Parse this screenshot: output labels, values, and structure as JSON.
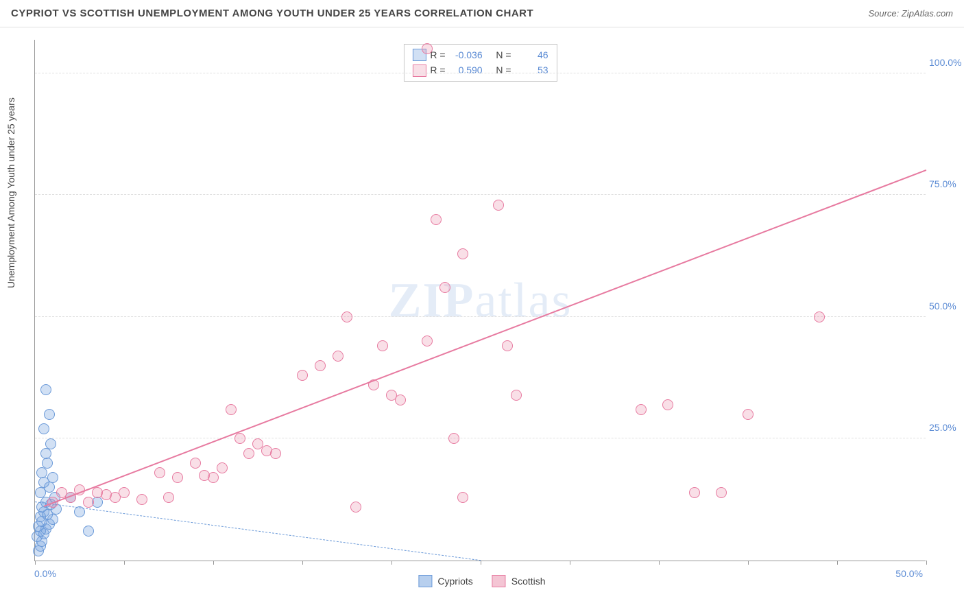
{
  "title": "CYPRIOT VS SCOTTISH UNEMPLOYMENT AMONG YOUTH UNDER 25 YEARS CORRELATION CHART",
  "source_label": "Source: ZipAtlas.com",
  "y_axis_label": "Unemployment Among Youth under 25 years",
  "watermark": {
    "bold": "ZIP",
    "light": "atlas"
  },
  "chart": {
    "type": "scatter",
    "xlim": [
      0,
      50
    ],
    "ylim": [
      0,
      107
    ],
    "y_ticks": [
      25,
      50,
      75,
      100
    ],
    "y_tick_labels": [
      "25.0%",
      "50.0%",
      "75.0%",
      "100.0%"
    ],
    "x_tick_positions": [
      0,
      5,
      10,
      15,
      20,
      25,
      30,
      35,
      40,
      45,
      50
    ],
    "x_origin_label": "0.0%",
    "x_max_label": "50.0%",
    "grid_color": "#e0e0e0",
    "background_color": "#ffffff",
    "axis_color": "#999999",
    "marker_radius": 8,
    "marker_border_width": 1.5,
    "series": [
      {
        "name": "Cypriots",
        "fill_color": "rgba(123,167,224,0.35)",
        "stroke_color": "#6a99d8",
        "r_value": "-0.036",
        "n_value": "46",
        "trend": {
          "x1": 0,
          "y1": 12,
          "x2": 25,
          "y2": 0,
          "style": "dash"
        },
        "points": [
          [
            0.2,
            2
          ],
          [
            0.3,
            3
          ],
          [
            0.4,
            4
          ],
          [
            0.1,
            5
          ],
          [
            0.5,
            5.5
          ],
          [
            0.3,
            6
          ],
          [
            0.6,
            6.5
          ],
          [
            0.2,
            7
          ],
          [
            0.8,
            7.5
          ],
          [
            0.4,
            8
          ],
          [
            1.0,
            8.5
          ],
          [
            0.3,
            9
          ],
          [
            0.7,
            9.5
          ],
          [
            0.5,
            10
          ],
          [
            1.2,
            10.5
          ],
          [
            0.4,
            11
          ],
          [
            0.9,
            11.5
          ],
          [
            0.6,
            12
          ],
          [
            1.1,
            13
          ],
          [
            0.3,
            14
          ],
          [
            0.8,
            15
          ],
          [
            0.5,
            16
          ],
          [
            1.0,
            17
          ],
          [
            0.4,
            18
          ],
          [
            0.7,
            20
          ],
          [
            0.6,
            22
          ],
          [
            0.9,
            24
          ],
          [
            0.5,
            27
          ],
          [
            0.8,
            30
          ],
          [
            0.6,
            35
          ],
          [
            2.0,
            13
          ],
          [
            2.5,
            10
          ],
          [
            3.0,
            6
          ],
          [
            3.5,
            12
          ]
        ]
      },
      {
        "name": "Scottish",
        "fill_color": "rgba(233,140,170,0.28)",
        "stroke_color": "#e77aa0",
        "r_value": "0.590",
        "n_value": "53",
        "trend": {
          "x1": 0.5,
          "y1": 11,
          "x2": 50,
          "y2": 80,
          "style": "solid"
        },
        "points": [
          [
            1.0,
            12
          ],
          [
            1.5,
            14
          ],
          [
            2.0,
            13
          ],
          [
            2.5,
            14.5
          ],
          [
            3.0,
            12
          ],
          [
            3.5,
            14
          ],
          [
            4.0,
            13.5
          ],
          [
            4.5,
            13
          ],
          [
            5.0,
            14
          ],
          [
            6.0,
            12.5
          ],
          [
            7.0,
            18
          ],
          [
            7.5,
            13
          ],
          [
            8.0,
            17
          ],
          [
            9.0,
            20
          ],
          [
            9.5,
            17.5
          ],
          [
            10.0,
            17
          ],
          [
            10.5,
            19
          ],
          [
            11.0,
            31
          ],
          [
            11.5,
            25
          ],
          [
            12.0,
            22
          ],
          [
            12.5,
            24
          ],
          [
            13.0,
            22.5
          ],
          [
            13.5,
            22
          ],
          [
            15.0,
            38
          ],
          [
            16.0,
            40
          ],
          [
            17.0,
            42
          ],
          [
            17.5,
            50
          ],
          [
            18.0,
            11
          ],
          [
            19.0,
            36
          ],
          [
            19.5,
            44
          ],
          [
            20.0,
            34
          ],
          [
            20.5,
            33
          ],
          [
            22.0,
            45
          ],
          [
            22.5,
            70
          ],
          [
            23.0,
            56
          ],
          [
            24.0,
            63
          ],
          [
            26.0,
            73
          ],
          [
            26.5,
            44
          ],
          [
            27.0,
            34
          ],
          [
            23.5,
            25
          ],
          [
            24.0,
            13
          ],
          [
            22.0,
            105
          ],
          [
            34.0,
            31
          ],
          [
            35.5,
            32
          ],
          [
            37.0,
            14
          ],
          [
            38.5,
            14
          ],
          [
            40.0,
            30
          ],
          [
            44.0,
            50
          ]
        ]
      }
    ]
  },
  "bottom_legend": [
    {
      "label": "Cypriots",
      "fill": "rgba(123,167,224,0.55)",
      "stroke": "#6a99d8"
    },
    {
      "label": "Scottish",
      "fill": "rgba(233,140,170,0.5)",
      "stroke": "#e77aa0"
    }
  ],
  "stats_legend_labels": {
    "r": "R =",
    "n": "N ="
  }
}
